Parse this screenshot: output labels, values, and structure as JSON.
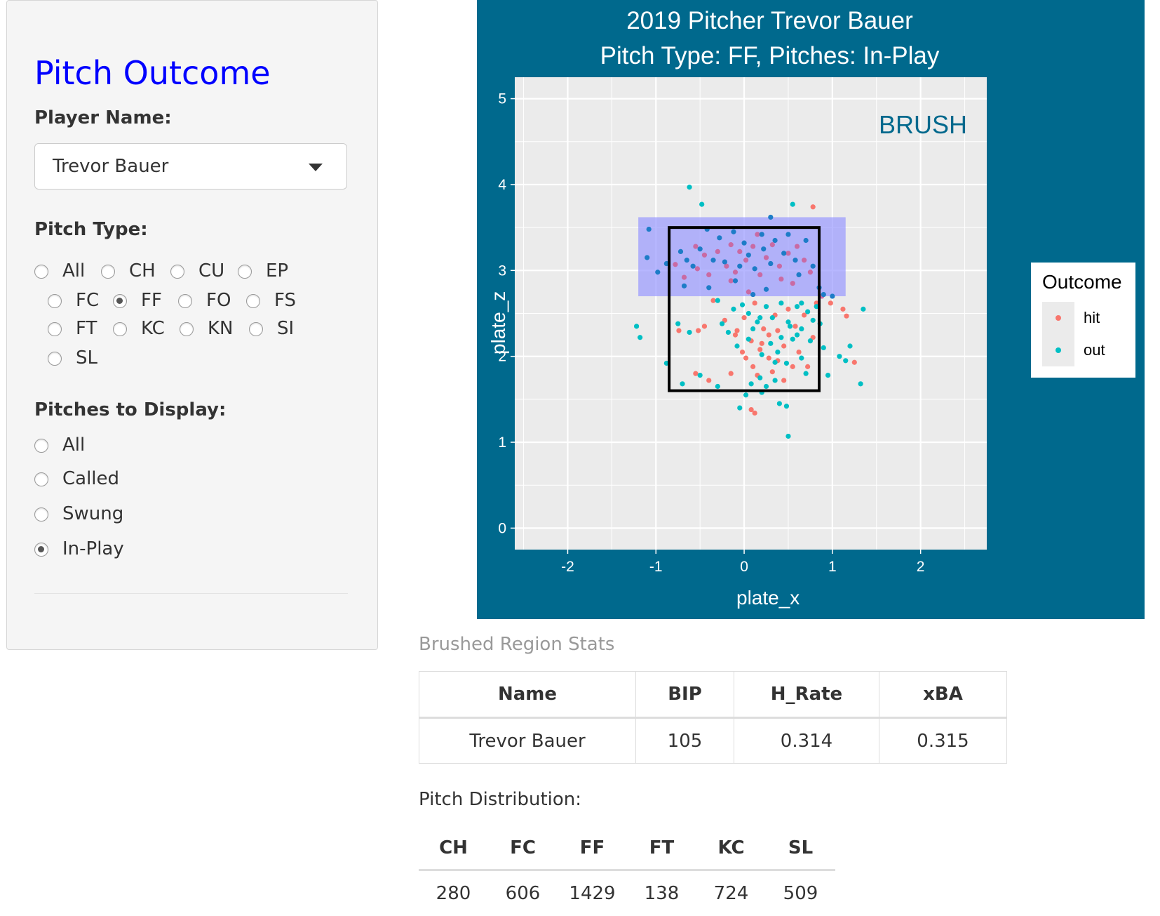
{
  "sidebar": {
    "title": "Pitch Outcome",
    "player_label": "Player Name:",
    "player_value": "Trevor Bauer",
    "pitch_type_label": "Pitch Type:",
    "pitch_types": [
      "All",
      "CH",
      "CU",
      "EP",
      "FC",
      "FF",
      "FO",
      "FS",
      "FT",
      "KC",
      "KN",
      "SI",
      "SL"
    ],
    "pitch_type_selected": "FF",
    "display_label": "Pitches to Display:",
    "display_options": [
      "All",
      "Called",
      "Swung",
      "In-Play"
    ],
    "display_selected": "In-Play"
  },
  "plot": {
    "title_line1": "2019 Pitcher Trevor Bauer",
    "title_line2": "Pitch Type: FF, Pitches: In-Play",
    "annotation": "BRUSH",
    "legend_title": "Outcome",
    "colors": {
      "panel_bg": "#00698d",
      "plot_bg": "#ebebeb",
      "hit": "#f8766d",
      "out": "#00bfc4",
      "brush_fill": "#9999ff",
      "brush_pts": "#1d7cc7",
      "annotation": "#00698d"
    }
  },
  "chart_data": {
    "type": "scatter",
    "title": "2019 Pitcher Trevor Bauer\nPitch Type: FF, Pitches: In-Play",
    "xlabel": "plate_x",
    "ylabel": "plate_z",
    "xlim": [
      -2.6,
      2.75
    ],
    "ylim": [
      -0.25,
      5.25
    ],
    "x_ticks": [
      -2,
      -1,
      0,
      1,
      2
    ],
    "y_ticks": [
      0,
      1,
      2,
      3,
      4,
      5
    ],
    "grid": true,
    "legend_position": "right",
    "strike_zone": {
      "x": [
        -0.85,
        0.85
      ],
      "z": [
        1.6,
        3.5
      ]
    },
    "brush_region": {
      "x": [
        -1.2,
        1.15
      ],
      "z": [
        2.7,
        3.62
      ]
    },
    "series": [
      {
        "name": "hit",
        "points": [
          [
            -0.78,
            3.07
          ],
          [
            -0.68,
            2.92
          ],
          [
            -0.55,
            3.28
          ],
          [
            -0.53,
            3.02
          ],
          [
            -0.45,
            3.18
          ],
          [
            -0.4,
            2.95
          ],
          [
            -0.3,
            3.22
          ],
          [
            -0.2,
            3.05
          ],
          [
            -0.15,
            2.88
          ],
          [
            -0.15,
            3.3
          ],
          [
            -0.1,
            2.98
          ],
          [
            -0.05,
            3.22
          ],
          [
            0.02,
            3.12
          ],
          [
            0.1,
            3.28
          ],
          [
            0.15,
            3.42
          ],
          [
            0.18,
            2.95
          ],
          [
            0.25,
            3.15
          ],
          [
            0.32,
            3.3
          ],
          [
            0.4,
            3.05
          ],
          [
            0.42,
            2.9
          ],
          [
            0.5,
            3.2
          ],
          [
            0.6,
            3.28
          ],
          [
            0.68,
            3.12
          ],
          [
            0.75,
            2.98
          ],
          [
            0.55,
            2.85
          ],
          [
            0.05,
            2.75
          ],
          [
            0.78,
            3.74
          ],
          [
            -0.35,
            2.65
          ],
          [
            -0.22,
            2.42
          ],
          [
            -0.08,
            2.3
          ],
          [
            0.0,
            2.45
          ],
          [
            0.08,
            2.18
          ],
          [
            0.12,
            2.62
          ],
          [
            0.18,
            2.08
          ],
          [
            0.22,
            2.32
          ],
          [
            0.28,
            2.25
          ],
          [
            0.35,
            2.48
          ],
          [
            0.38,
            1.95
          ],
          [
            0.45,
            2.12
          ],
          [
            0.5,
            2.55
          ],
          [
            0.58,
            2.35
          ],
          [
            0.62,
            2.05
          ],
          [
            0.68,
            2.48
          ],
          [
            0.72,
            1.88
          ],
          [
            0.78,
            2.22
          ],
          [
            0.82,
            2.62
          ],
          [
            0.88,
            2.7
          ],
          [
            -0.45,
            2.35
          ],
          [
            -0.52,
            2.3
          ],
          [
            -0.02,
            2.05
          ],
          [
            0.02,
            1.98
          ],
          [
            0.1,
            1.88
          ],
          [
            0.15,
            1.78
          ],
          [
            0.2,
            2.15
          ],
          [
            0.28,
            1.98
          ],
          [
            0.32,
            1.82
          ],
          [
            0.45,
            1.72
          ],
          [
            0.55,
            1.88
          ],
          [
            0.08,
            1.38
          ],
          [
            0.12,
            1.34
          ],
          [
            -0.1,
            2.25
          ],
          [
            -0.15,
            1.8
          ],
          [
            -0.4,
            1.72
          ],
          [
            0.98,
            2.62
          ],
          [
            1.12,
            2.55
          ],
          [
            1.16,
            2.47
          ],
          [
            1.25,
            1.93
          ],
          [
            -0.74,
            2.3
          ],
          [
            -0.55,
            1.8
          ],
          [
            0.38,
            2.3
          ]
        ]
      },
      {
        "name": "out",
        "points": [
          [
            -0.62,
            3.97
          ],
          [
            -0.48,
            3.77
          ],
          [
            0.3,
            3.62
          ],
          [
            0.55,
            3.77
          ],
          [
            -1.08,
            3.48
          ],
          [
            -1.1,
            3.15
          ],
          [
            -0.98,
            2.98
          ],
          [
            -0.88,
            3.08
          ],
          [
            -0.72,
            3.22
          ],
          [
            -0.65,
            3.12
          ],
          [
            -0.58,
            3.05
          ],
          [
            -0.5,
            3.25
          ],
          [
            -0.42,
            3.48
          ],
          [
            -0.35,
            3.12
          ],
          [
            -0.28,
            3.38
          ],
          [
            -0.22,
            3.1
          ],
          [
            -0.12,
            3.45
          ],
          [
            -0.05,
            3.05
          ],
          [
            0.0,
            3.32
          ],
          [
            0.05,
            3.18
          ],
          [
            0.12,
            3.02
          ],
          [
            0.2,
            3.42
          ],
          [
            0.22,
            3.25
          ],
          [
            0.3,
            3.08
          ],
          [
            0.35,
            3.35
          ],
          [
            0.45,
            3.2
          ],
          [
            0.5,
            3.42
          ],
          [
            0.58,
            3.12
          ],
          [
            0.62,
            2.95
          ],
          [
            0.7,
            3.35
          ],
          [
            0.78,
            3.05
          ],
          [
            0.85,
            2.8
          ],
          [
            -0.68,
            2.82
          ],
          [
            -0.4,
            2.8
          ],
          [
            -0.1,
            2.88
          ],
          [
            0.25,
            2.78
          ],
          [
            0.9,
            2.72
          ],
          [
            1.0,
            2.7
          ],
          [
            -0.3,
            2.65
          ],
          [
            -0.12,
            2.55
          ],
          [
            -0.02,
            2.6
          ],
          [
            0.05,
            2.5
          ],
          [
            0.15,
            2.4
          ],
          [
            0.25,
            2.58
          ],
          [
            0.32,
            2.45
          ],
          [
            0.42,
            2.62
          ],
          [
            0.5,
            2.4
          ],
          [
            0.6,
            2.58
          ],
          [
            0.65,
            2.32
          ],
          [
            0.72,
            2.52
          ],
          [
            0.78,
            2.42
          ],
          [
            0.82,
            2.58
          ],
          [
            0.86,
            2.38
          ],
          [
            -0.25,
            2.38
          ],
          [
            -0.18,
            2.28
          ],
          [
            -0.08,
            2.12
          ],
          [
            0.05,
            2.2
          ],
          [
            0.1,
            2.32
          ],
          [
            0.18,
            2.45
          ],
          [
            0.2,
            2.02
          ],
          [
            0.3,
            2.15
          ],
          [
            0.38,
            2.05
          ],
          [
            0.42,
            2.22
          ],
          [
            0.48,
            1.92
          ],
          [
            0.52,
            2.35
          ],
          [
            0.6,
            2.25
          ],
          [
            0.65,
            1.98
          ],
          [
            0.7,
            1.8
          ],
          [
            0.75,
            2.18
          ],
          [
            0.08,
            1.68
          ],
          [
            0.18,
            1.75
          ],
          [
            0.25,
            1.65
          ],
          [
            0.02,
            1.55
          ],
          [
            0.2,
            1.58
          ],
          [
            0.35,
            1.72
          ],
          [
            0.4,
            1.45
          ],
          [
            0.48,
            1.42
          ],
          [
            0.5,
            1.07
          ],
          [
            -0.05,
            1.4
          ],
          [
            -0.3,
            1.65
          ],
          [
            -0.5,
            1.78
          ],
          [
            -0.75,
            2.38
          ],
          [
            -0.62,
            2.28
          ],
          [
            -0.88,
            1.92
          ],
          [
            -0.7,
            1.68
          ],
          [
            0.9,
            2.1
          ],
          [
            0.95,
            1.78
          ],
          [
            1.08,
            2.0
          ],
          [
            1.15,
            1.95
          ],
          [
            1.2,
            2.12
          ],
          [
            1.35,
            2.55
          ],
          [
            1.32,
            1.68
          ],
          [
            -1.22,
            2.35
          ],
          [
            -1.18,
            2.22
          ],
          [
            0.35,
            1.93
          ],
          [
            0.1,
            2.72
          ],
          [
            0.55,
            2.2
          ],
          [
            0.65,
            2.62
          ]
        ]
      }
    ]
  },
  "stats": {
    "heading": "Brushed Region Stats",
    "columns": [
      "Name",
      "BIP",
      "H_Rate",
      "xBA"
    ],
    "row": [
      "Trevor Bauer",
      "105",
      "0.314",
      "0.315"
    ]
  },
  "distribution": {
    "label": "Pitch Distribution:",
    "columns": [
      "CH",
      "FC",
      "FF",
      "FT",
      "KC",
      "SL"
    ],
    "values": [
      "280",
      "606",
      "1429",
      "138",
      "724",
      "509"
    ]
  }
}
